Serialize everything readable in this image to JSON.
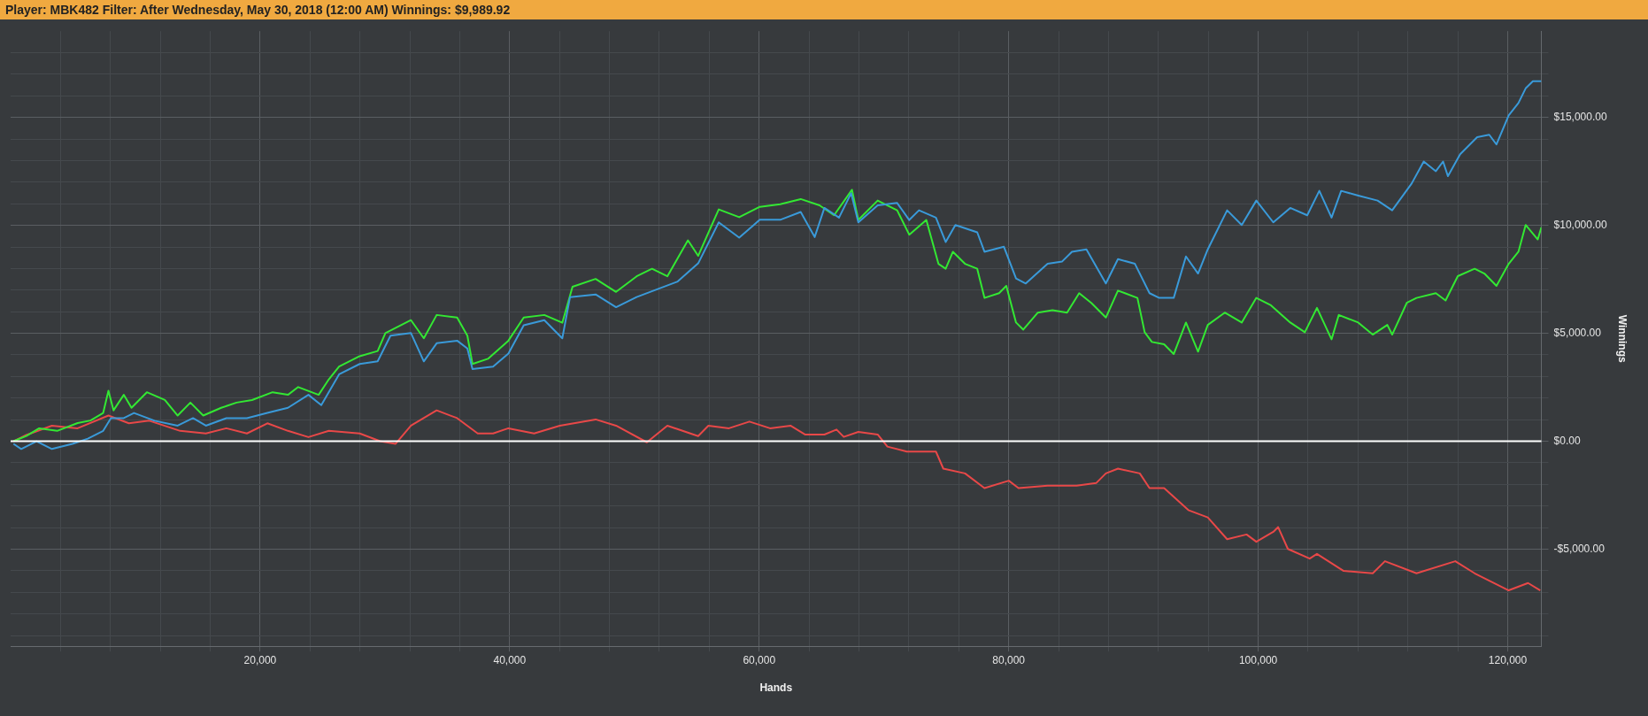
{
  "chart_data": {
    "type": "line",
    "title": "Player: MBK482 Filter: After Wednesday, May 30, 2018 (12:00 AM) Winnings: $9,989.92",
    "xlabel": "Hands",
    "ylabel": "Winnings",
    "xlim": [
      0,
      122700
    ],
    "xticks": [
      {
        "value": 4000,
        "label": null
      },
      {
        "value": 8000,
        "label": null
      },
      {
        "value": 12000,
        "label": null
      },
      {
        "value": 16000,
        "label": null
      },
      {
        "value": 20000,
        "label": "20,000"
      },
      {
        "value": 24000,
        "label": null
      },
      {
        "value": 28000,
        "label": null
      },
      {
        "value": 32000,
        "label": null
      },
      {
        "value": 36000,
        "label": null
      },
      {
        "value": 40000,
        "label": "40,000"
      },
      {
        "value": 44000,
        "label": null
      },
      {
        "value": 48000,
        "label": null
      },
      {
        "value": 52000,
        "label": null
      },
      {
        "value": 56000,
        "label": null
      },
      {
        "value": 60000,
        "label": "60,000"
      },
      {
        "value": 64000,
        "label": null
      },
      {
        "value": 68000,
        "label": null
      },
      {
        "value": 72000,
        "label": null
      },
      {
        "value": 76000,
        "label": null
      },
      {
        "value": 80000,
        "label": "80,000"
      },
      {
        "value": 84000,
        "label": null
      },
      {
        "value": 88000,
        "label": null
      },
      {
        "value": 92000,
        "label": null
      },
      {
        "value": 96000,
        "label": null
      },
      {
        "value": 100000,
        "label": "100,000"
      },
      {
        "value": 104000,
        "label": null
      },
      {
        "value": 108000,
        "label": null
      },
      {
        "value": 112000,
        "label": null
      },
      {
        "value": 116000,
        "label": null
      },
      {
        "value": 120000,
        "label": "120,000"
      }
    ],
    "ylim": [
      -9500,
      19000
    ],
    "yticks": [
      {
        "value": -9000,
        "label": null
      },
      {
        "value": -8000,
        "label": null
      },
      {
        "value": -7000,
        "label": null
      },
      {
        "value": -6000,
        "label": null
      },
      {
        "value": -5000,
        "label": "-$5,000.00"
      },
      {
        "value": -4000,
        "label": null
      },
      {
        "value": -3000,
        "label": null
      },
      {
        "value": -2000,
        "label": null
      },
      {
        "value": -1000,
        "label": null
      },
      {
        "value": 0,
        "label": "$0.00"
      },
      {
        "value": 1000,
        "label": null
      },
      {
        "value": 2000,
        "label": null
      },
      {
        "value": 3000,
        "label": null
      },
      {
        "value": 4000,
        "label": null
      },
      {
        "value": 5000,
        "label": "$5,000.00"
      },
      {
        "value": 6000,
        "label": null
      },
      {
        "value": 7000,
        "label": null
      },
      {
        "value": 8000,
        "label": null
      },
      {
        "value": 9000,
        "label": null
      },
      {
        "value": 10000,
        "label": "$10,000.00"
      },
      {
        "value": 11000,
        "label": null
      },
      {
        "value": 12000,
        "label": null
      },
      {
        "value": 13000,
        "label": null
      },
      {
        "value": 14000,
        "label": null
      },
      {
        "value": 15000,
        "label": "$15,000.00"
      },
      {
        "value": 16000,
        "label": null
      },
      {
        "value": 17000,
        "label": null
      },
      {
        "value": 18000,
        "label": null
      }
    ],
    "grid": true,
    "legend": false,
    "marker": "none",
    "line_style": "solid",
    "ref_lines": [
      {
        "axis": "y",
        "value": 0,
        "color": "#ffffff"
      }
    ],
    "series": [
      {
        "color": "#3a9ad9",
        "x": [
          230,
          850,
          2080,
          3310,
          4960,
          6190,
          7420,
          8040,
          9070,
          9890,
          11540,
          13390,
          14620,
          15650,
          17290,
          18940,
          20580,
          22230,
          23870,
          24900,
          26330,
          27980,
          29420,
          30450,
          32090,
          33120,
          34150,
          35790,
          36610,
          37020,
          38670,
          39900,
          41130,
          42780,
          44220,
          44840,
          46890,
          48530,
          50180,
          51820,
          53470,
          55110,
          56760,
          58400,
          60050,
          61690,
          63330,
          64450,
          65230,
          66400,
          67370,
          67950,
          69500,
          71060,
          72030,
          72810,
          74170,
          74950,
          75730,
          77480,
          78060,
          79620,
          80590,
          81370,
          83120,
          84290,
          85070,
          86230,
          87790,
          88760,
          90120,
          91290,
          92070,
          93230,
          94210,
          95180,
          95960,
          97510,
          98680,
          99850,
          101210,
          102570,
          103930,
          104900,
          105880,
          106650,
          108020,
          109570,
          110740,
          112300,
          113270,
          114240,
          114820,
          115210,
          116190,
          117550,
          118520,
          119100,
          120080,
          120860,
          121440,
          122020,
          122700
        ],
        "values": [
          -120,
          -360,
          0,
          -360,
          -120,
          120,
          480,
          1070,
          1070,
          1310,
          950,
          720,
          1070,
          720,
          1070,
          1070,
          1310,
          1550,
          2150,
          1670,
          3100,
          3580,
          3700,
          4890,
          5010,
          3700,
          4540,
          4660,
          4300,
          3340,
          3460,
          4060,
          5370,
          5610,
          4770,
          6680,
          6800,
          6210,
          6680,
          7040,
          7400,
          8240,
          10140,
          9430,
          10260,
          10260,
          10620,
          9460,
          10810,
          10360,
          11490,
          10140,
          10930,
          11040,
          10250,
          10700,
          10360,
          9230,
          10020,
          9680,
          8780,
          9010,
          7540,
          7310,
          8220,
          8330,
          8780,
          8890,
          7310,
          8440,
          8220,
          6860,
          6640,
          6640,
          8560,
          7770,
          8890,
          10700,
          10020,
          11150,
          10140,
          10810,
          10470,
          11600,
          10360,
          11600,
          11380,
          11150,
          10700,
          11940,
          12960,
          12510,
          12960,
          12280,
          13300,
          14090,
          14200,
          13750,
          15100,
          15670,
          16350,
          16680,
          16680
        ]
      },
      {
        "color": "#33e833",
        "x": [
          230,
          1260,
          2290,
          3730,
          5370,
          6400,
          7420,
          7840,
          8250,
          9070,
          9690,
          10920,
          12360,
          13390,
          14410,
          15440,
          16880,
          18110,
          19350,
          21000,
          22230,
          23050,
          24690,
          25510,
          26330,
          27980,
          29420,
          30040,
          32090,
          33120,
          34150,
          35790,
          36610,
          37020,
          38260,
          39900,
          41130,
          42780,
          44220,
          45040,
          46890,
          48530,
          50180,
          51410,
          52640,
          54290,
          55110,
          56760,
          58400,
          60050,
          61690,
          63330,
          64840,
          66000,
          67440,
          67950,
          69500,
          71060,
          72030,
          73400,
          74370,
          74950,
          75530,
          76500,
          77480,
          78060,
          79230,
          79810,
          80590,
          81170,
          82340,
          83510,
          84680,
          85650,
          86620,
          87790,
          88760,
          90320,
          90900,
          91480,
          92460,
          93230,
          94210,
          95180,
          95960,
          97320,
          98680,
          99850,
          101020,
          102570,
          103740,
          104710,
          105880,
          106460,
          108020,
          109180,
          110350,
          110740,
          111910,
          112690,
          114240,
          115020,
          116000,
          117350,
          118130,
          119100,
          120080,
          120860,
          121440,
          122410,
          122700
        ],
        "values": [
          0,
          240,
          600,
          480,
          840,
          960,
          1310,
          2340,
          1430,
          2150,
          1550,
          2270,
          1910,
          1190,
          1790,
          1190,
          1550,
          1790,
          1910,
          2270,
          2150,
          2510,
          2150,
          2870,
          3460,
          3940,
          4180,
          5010,
          5610,
          4770,
          5850,
          5730,
          4890,
          3580,
          3820,
          4660,
          5730,
          5850,
          5490,
          7160,
          7520,
          6920,
          7640,
          7990,
          7640,
          9310,
          8590,
          10740,
          10380,
          10860,
          10980,
          11220,
          10930,
          10470,
          11650,
          10250,
          11150,
          10700,
          9570,
          10250,
          8220,
          7990,
          8780,
          8220,
          7990,
          6640,
          6860,
          7200,
          5500,
          5170,
          5960,
          6070,
          5960,
          6860,
          6410,
          5730,
          6980,
          6640,
          5050,
          4600,
          4490,
          4040,
          5500,
          4150,
          5390,
          5960,
          5500,
          6640,
          6300,
          5500,
          5050,
          6180,
          4720,
          5850,
          5500,
          4940,
          5390,
          4940,
          6410,
          6640,
          6860,
          6520,
          7650,
          7990,
          7770,
          7200,
          8220,
          8780,
          10020,
          9350,
          9910
        ]
      },
      {
        "color": "#e84848",
        "x": [
          230,
          1260,
          3310,
          5370,
          7840,
          9480,
          11120,
          13590,
          15650,
          17290,
          18940,
          20580,
          22230,
          23870,
          25510,
          27980,
          29620,
          30860,
          32090,
          34150,
          35790,
          37440,
          38670,
          39900,
          41960,
          44020,
          46890,
          48530,
          51000,
          52640,
          55110,
          55930,
          57580,
          59220,
          60870,
          62510,
          63670,
          65230,
          66200,
          66780,
          67950,
          69500,
          70280,
          71840,
          74170,
          74760,
          76500,
          78060,
          80010,
          80790,
          83120,
          85450,
          87010,
          87790,
          88760,
          90510,
          91290,
          92460,
          94400,
          95960,
          97510,
          99070,
          99850,
          101210,
          101600,
          102380,
          104130,
          104710,
          106850,
          109180,
          110160,
          112690,
          115800,
          117350,
          120080,
          121630,
          122610
        ],
        "values": [
          0,
          290,
          720,
          600,
          1190,
          830,
          950,
          480,
          360,
          600,
          360,
          830,
          480,
          190,
          480,
          360,
          0,
          -120,
          720,
          1430,
          1070,
          360,
          360,
          600,
          360,
          720,
          1010,
          720,
          -50,
          720,
          240,
          720,
          600,
          910,
          600,
          720,
          310,
          310,
          540,
          200,
          430,
          310,
          -250,
          -480,
          -480,
          -1270,
          -1490,
          -2170,
          -1830,
          -2170,
          -2060,
          -2060,
          -1940,
          -1490,
          -1270,
          -1490,
          -2170,
          -2170,
          -3190,
          -3530,
          -4540,
          -4320,
          -4660,
          -4200,
          -3980,
          -4990,
          -5440,
          -5220,
          -6010,
          -6120,
          -5560,
          -6120,
          -5560,
          -6120,
          -6910,
          -6570,
          -6910
        ]
      }
    ]
  }
}
